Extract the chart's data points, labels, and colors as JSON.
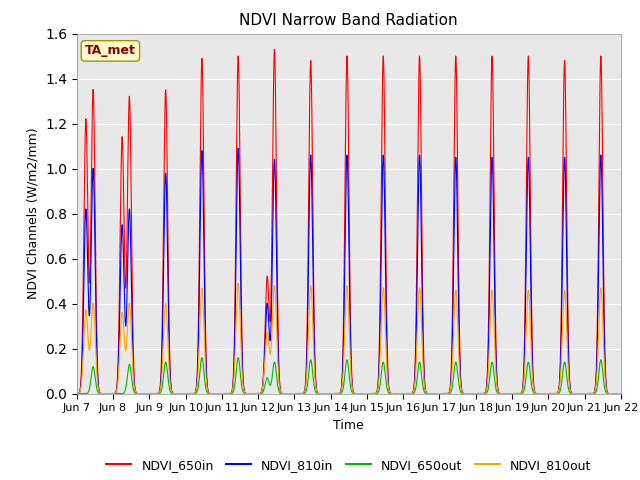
{
  "title": "NDVI Narrow Band Radiation",
  "xlabel": "Time",
  "ylabel": "NDVI Channels (W/m2/mm)",
  "annotation": "TA_met",
  "ylim": [
    0.0,
    1.6
  ],
  "yticks": [
    0.0,
    0.2,
    0.4,
    0.6,
    0.8,
    1.0,
    1.2,
    1.4,
    1.6
  ],
  "colors": {
    "NDVI_650in": "#ff0000",
    "NDVI_810in": "#0000ff",
    "NDVI_650out": "#00bb00",
    "NDVI_810out": "#ffa500"
  },
  "bg_color": "#e8e8e8",
  "tick_labels": [
    "Jun 7",
    "Jun 8",
    "Jun 9",
    "Jun 10",
    "Jun 11",
    "Jun 12",
    "Jun 13",
    "Jun 14",
    "Jun 15",
    "Jun 16",
    "Jun 17",
    "Jun 18",
    "Jun 19",
    "Jun 20",
    "Jun 21",
    "Jun 22"
  ],
  "num_days": 15,
  "r_peaks": [
    1.35,
    1.32,
    1.35,
    1.49,
    1.5,
    1.53,
    1.48,
    1.5,
    1.5,
    1.5,
    1.5,
    1.5,
    1.5,
    1.48,
    1.5
  ],
  "b_peaks": [
    1.0,
    0.82,
    0.98,
    1.08,
    1.09,
    1.04,
    1.06,
    1.06,
    1.06,
    1.06,
    1.05,
    1.05,
    1.05,
    1.05,
    1.06
  ],
  "g_peaks": [
    0.12,
    0.13,
    0.14,
    0.16,
    0.16,
    0.14,
    0.15,
    0.15,
    0.14,
    0.14,
    0.14,
    0.14,
    0.14,
    0.14,
    0.15
  ],
  "o_peaks": [
    0.4,
    0.4,
    0.4,
    0.47,
    0.49,
    0.48,
    0.48,
    0.48,
    0.47,
    0.47,
    0.46,
    0.46,
    0.46,
    0.46,
    0.47
  ],
  "r_peaks2": [
    1.22,
    1.14,
    0.0,
    0.0,
    0.0,
    0.52,
    0.0,
    0.0,
    0.0,
    0.0,
    0.0,
    0.0,
    0.0,
    0.0,
    0.0
  ],
  "b_peaks2": [
    0.82,
    0.75,
    0.0,
    0.0,
    0.0,
    0.4,
    0.0,
    0.0,
    0.0,
    0.0,
    0.0,
    0.0,
    0.0,
    0.0,
    0.0
  ],
  "g_peaks2": [
    0.0,
    0.0,
    0.0,
    0.0,
    0.0,
    0.07,
    0.0,
    0.0,
    0.0,
    0.0,
    0.0,
    0.0,
    0.0,
    0.0,
    0.0
  ],
  "o_peaks2": [
    0.37,
    0.36,
    0.0,
    0.0,
    0.0,
    0.27,
    0.0,
    0.0,
    0.0,
    0.0,
    0.0,
    0.0,
    0.0,
    0.0,
    0.0
  ],
  "peak_positions": [
    0.45,
    0.45,
    0.45,
    0.45,
    0.45,
    0.45,
    0.45,
    0.45,
    0.45,
    0.45,
    0.45,
    0.45,
    0.45,
    0.45,
    0.45
  ],
  "peak_positions2": [
    0.25,
    0.25,
    0.0,
    0.0,
    0.0,
    0.25,
    0.0,
    0.0,
    0.0,
    0.0,
    0.0,
    0.0,
    0.0,
    0.0,
    0.0
  ]
}
